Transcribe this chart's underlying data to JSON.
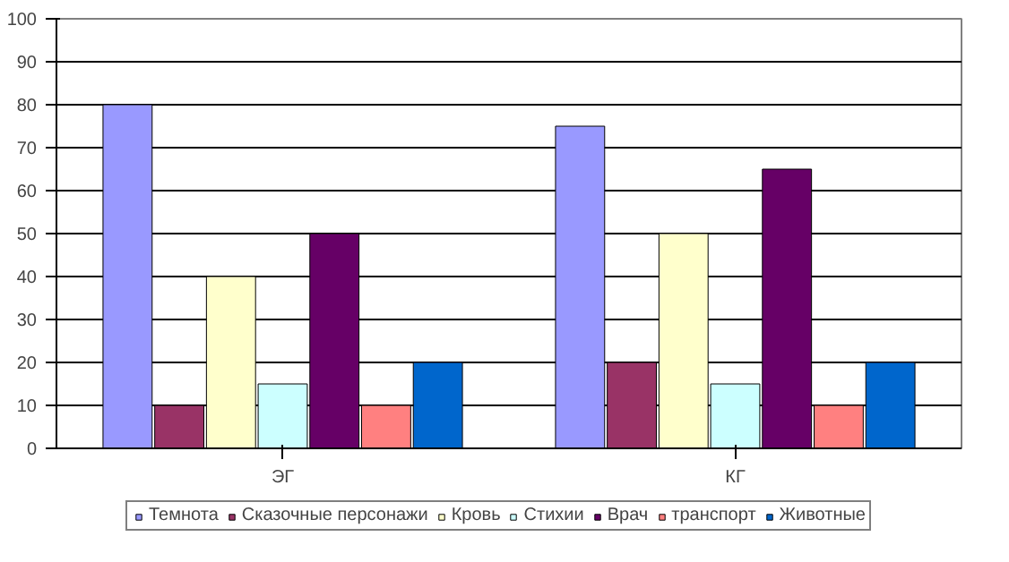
{
  "chart_data": {
    "type": "bar",
    "categories": [
      "ЭГ",
      "КГ"
    ],
    "series": [
      {
        "name": "Темнота",
        "color": "#9999ff",
        "values": [
          80,
          75
        ]
      },
      {
        "name": "Сказочные персонажи",
        "color": "#993366",
        "values": [
          10,
          20
        ]
      },
      {
        "name": "Кровь",
        "color": "#ffffcc",
        "values": [
          40,
          50
        ]
      },
      {
        "name": "Стихии",
        "color": "#ccffff",
        "values": [
          15,
          15
        ]
      },
      {
        "name": "Врач",
        "color": "#660066",
        "values": [
          50,
          65
        ]
      },
      {
        "name": "транспорт",
        "color": "#ff8080",
        "values": [
          10,
          10
        ]
      },
      {
        "name": "Животные",
        "color": "#0066cc",
        "values": [
          20,
          20
        ]
      }
    ],
    "ylim": [
      0,
      100
    ],
    "yticks": [
      0,
      10,
      20,
      30,
      40,
      50,
      60,
      70,
      80,
      90,
      100
    ],
    "grid": "y",
    "legend": "bottom"
  }
}
